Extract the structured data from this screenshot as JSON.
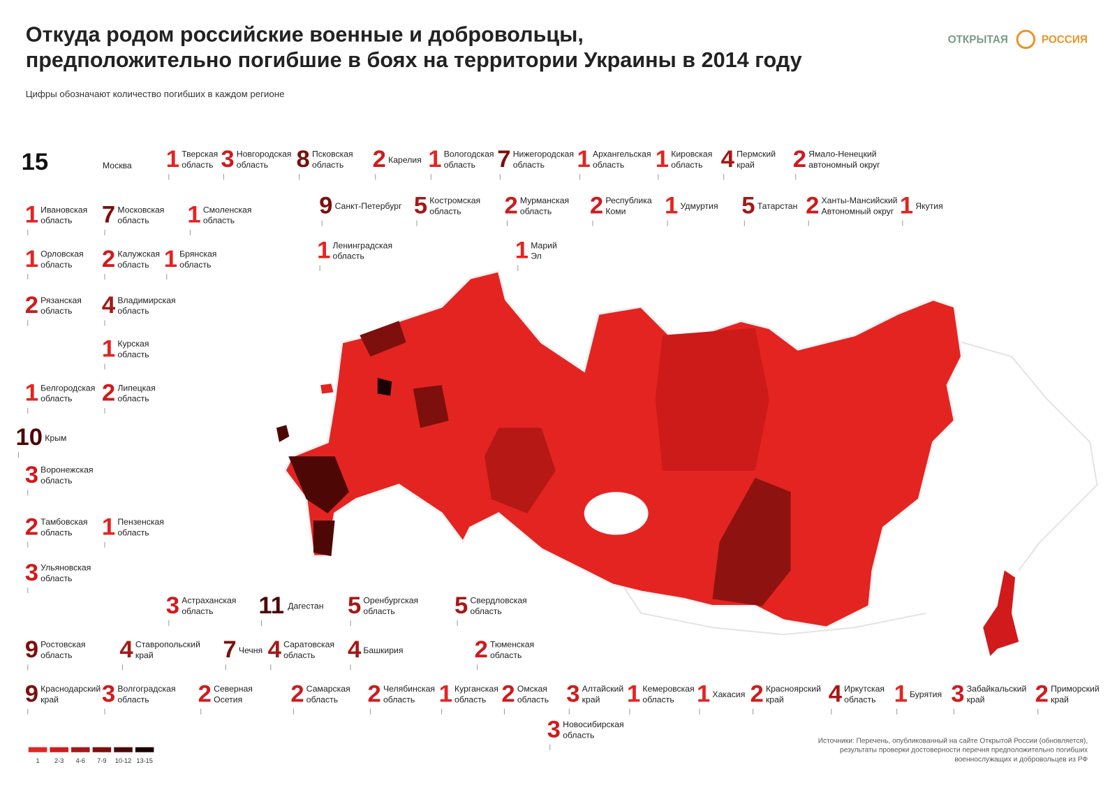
{
  "title": [
    "Откуда родом российские военные и добровольцы,",
    "предположительно погибшие в боях на территории Украины в 2014 году"
  ],
  "subtitle": "Цифры обозначают количество погибших в каждом регионе",
  "logo": [
    "ОТКРЫТАЯ",
    "РОССИЯ"
  ],
  "regions": [
    {
      "value": 15,
      "name": [
        "Москва"
      ]
    },
    {
      "value": 1,
      "name": [
        "Тверская",
        "область"
      ]
    },
    {
      "value": 3,
      "name": [
        "Новгородская",
        "область"
      ]
    },
    {
      "value": 8,
      "name": [
        "Псковская",
        "область"
      ]
    },
    {
      "value": 2,
      "name": [
        "Карелия"
      ]
    },
    {
      "value": 1,
      "name": [
        "Вологодская",
        "область"
      ]
    },
    {
      "value": 7,
      "name": [
        "Нижегородская",
        "область"
      ]
    },
    {
      "value": 1,
      "name": [
        "Архангельская",
        "область"
      ]
    },
    {
      "value": 1,
      "name": [
        "Кировская",
        "область"
      ]
    },
    {
      "value": 4,
      "name": [
        "Пермский",
        "край"
      ]
    },
    {
      "value": 2,
      "name": [
        "Ямало-Ненецкий",
        "автономный округ"
      ]
    },
    {
      "value": 1,
      "name": [
        "Ивановская",
        "область"
      ]
    },
    {
      "value": 7,
      "name": [
        "Московская",
        "область"
      ]
    },
    {
      "value": 1,
      "name": [
        "Смоленская",
        "область"
      ]
    },
    {
      "value": 9,
      "name": [
        "Санкт-Петербург"
      ]
    },
    {
      "value": 5,
      "name": [
        "Костромская",
        "область"
      ]
    },
    {
      "value": 2,
      "name": [
        "Мурманская",
        "область"
      ]
    },
    {
      "value": 2,
      "name": [
        "Республика",
        "Коми"
      ]
    },
    {
      "value": 1,
      "name": [
        "Удмуртия"
      ]
    },
    {
      "value": 5,
      "name": [
        "Татарстан"
      ]
    },
    {
      "value": 2,
      "name": [
        "Ханты-Мансийский",
        "Автономный округ"
      ]
    },
    {
      "value": 1,
      "name": [
        "Якутия"
      ]
    },
    {
      "value": 1,
      "name": [
        "Ленинградская",
        "область"
      ]
    },
    {
      "value": 1,
      "name": [
        "Марий",
        "Эл"
      ]
    },
    {
      "value": 1,
      "name": [
        "Орловская",
        "область"
      ]
    },
    {
      "value": 2,
      "name": [
        "Калужская",
        "область"
      ]
    },
    {
      "value": 1,
      "name": [
        "Брянская",
        "область"
      ]
    },
    {
      "value": 2,
      "name": [
        "Рязанская",
        "область"
      ]
    },
    {
      "value": 4,
      "name": [
        "Владимирская",
        "область"
      ]
    },
    {
      "value": 1,
      "name": [
        "Курская",
        "область"
      ]
    },
    {
      "value": 1,
      "name": [
        "Белгородская",
        "область"
      ]
    },
    {
      "value": 2,
      "name": [
        "Липецкая",
        "область"
      ]
    },
    {
      "value": 10,
      "name": [
        "Крым"
      ]
    },
    {
      "value": 3,
      "name": [
        "Воронежская",
        "область"
      ]
    },
    {
      "value": 2,
      "name": [
        "Тамбовская",
        "область"
      ]
    },
    {
      "value": 1,
      "name": [
        "Пензенская",
        "область"
      ]
    },
    {
      "value": 3,
      "name": [
        "Ульяновская",
        "область"
      ]
    },
    {
      "value": 3,
      "name": [
        "Астраханская",
        "область"
      ]
    },
    {
      "value": 11,
      "name": [
        "Дагестан"
      ]
    },
    {
      "value": 5,
      "name": [
        "Оренбургская",
        "область"
      ]
    },
    {
      "value": 5,
      "name": [
        "Свердловская",
        "область"
      ]
    },
    {
      "value": 9,
      "name": [
        "Ростовская",
        "область"
      ]
    },
    {
      "value": 4,
      "name": [
        "Ставропольский",
        "край"
      ]
    },
    {
      "value": 7,
      "name": [
        "Чечня"
      ]
    },
    {
      "value": 4,
      "name": [
        "Саратовская",
        "область"
      ]
    },
    {
      "value": 4,
      "name": [
        "Башкирия"
      ]
    },
    {
      "value": 2,
      "name": [
        "Тюменская",
        "область"
      ]
    },
    {
      "value": 9,
      "name": [
        "Краснодарский",
        "край"
      ]
    },
    {
      "value": 3,
      "name": [
        "Волгоградская",
        "область"
      ]
    },
    {
      "value": 2,
      "name": [
        "Северная",
        "Осетия"
      ]
    },
    {
      "value": 2,
      "name": [
        "Самарская",
        "область"
      ]
    },
    {
      "value": 2,
      "name": [
        "Челябинская",
        "область"
      ]
    },
    {
      "value": 1,
      "name": [
        "Курганская",
        "область"
      ]
    },
    {
      "value": 2,
      "name": [
        "Омская",
        "область"
      ]
    },
    {
      "value": 3,
      "name": [
        "Алтайский",
        "край"
      ]
    },
    {
      "value": 1,
      "name": [
        "Кемеровская",
        "область"
      ]
    },
    {
      "value": 1,
      "name": [
        "Хакасия"
      ]
    },
    {
      "value": 2,
      "name": [
        "Красноярский",
        "край"
      ]
    },
    {
      "value": 4,
      "name": [
        "Иркутская",
        "область"
      ]
    },
    {
      "value": 1,
      "name": [
        "Бурятия"
      ]
    },
    {
      "value": 3,
      "name": [
        "Забайкальский",
        "край"
      ]
    },
    {
      "value": 2,
      "name": [
        "Приморский",
        "край"
      ]
    },
    {
      "value": 3,
      "name": [
        "Новосибирская",
        "область"
      ]
    }
  ],
  "legend": [
    {
      "label": "1",
      "color": "#e42421"
    },
    {
      "label": "2-3",
      "color": "#d11a1c"
    },
    {
      "label": "4-6",
      "color": "#a51815"
    },
    {
      "label": "7-9",
      "color": "#7d0f0c"
    },
    {
      "label": "10-12",
      "color": "#4d0806"
    },
    {
      "label": "13-15",
      "color": "#1a0202"
    }
  ],
  "sources": [
    "Источники: Перечень, опубликованный на сайте Открытой России (обновляется),",
    "результаты проверки достоверности перечня предположительно погибших",
    "военнослужащих и добровольцев из РФ"
  ]
}
